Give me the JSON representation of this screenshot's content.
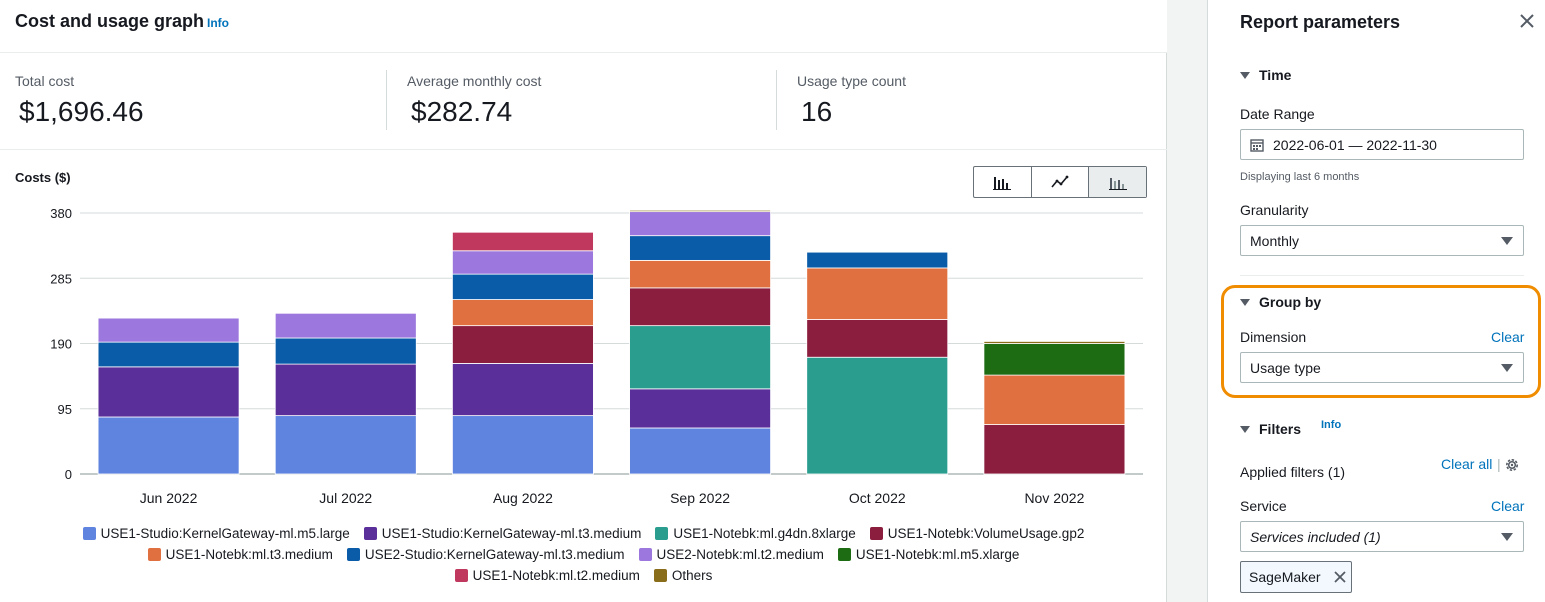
{
  "header": {
    "title": "Cost and usage graph",
    "info_label": "Info"
  },
  "stats": [
    {
      "label": "Total cost",
      "value": "$1,696.46"
    },
    {
      "label": "Average monthly cost",
      "value": "$282.74"
    },
    {
      "label": "Usage type count",
      "value": "16"
    }
  ],
  "chart_toggle": {
    "options": [
      "bar-chart-icon",
      "line-chart-icon",
      "stacked-bar-chart-icon"
    ],
    "active": "stacked-bar-chart-icon"
  },
  "chart_data": {
    "type": "bar",
    "stacked": true,
    "ylabel": "Costs ($)",
    "ylim": [
      0,
      380
    ],
    "yticks": [
      "0",
      "95",
      "190",
      "285",
      "380"
    ],
    "categories": [
      "Jun 2022",
      "Jul 2022",
      "Aug 2022",
      "Sep 2022",
      "Oct 2022",
      "Nov 2022"
    ],
    "series": [
      {
        "name": "USE1-Studio:KernelGateway-ml.m5.large",
        "color": "#5f84e0",
        "values": [
          83,
          85,
          85,
          67,
          0,
          0
        ]
      },
      {
        "name": "USE1-Studio:KernelGateway-ml.t3.medium",
        "color": "#5a2f99",
        "values": [
          73,
          75,
          76,
          57,
          0,
          0
        ]
      },
      {
        "name": "USE1-Notebk:ml.g4dn.8xlarge",
        "color": "#2a9d8f",
        "values": [
          0,
          0,
          0,
          92,
          170,
          0
        ]
      },
      {
        "name": "USE1-Notebk:VolumeUsage.gp2",
        "color": "#8b1e3f",
        "values": [
          0,
          0,
          55,
          55,
          55,
          72
        ]
      },
      {
        "name": "USE1-Notebk:ml.t3.medium",
        "color": "#e07040",
        "values": [
          0,
          0,
          38,
          40,
          75,
          72
        ]
      },
      {
        "name": "USE2-Studio:KernelGateway-ml.t3.medium",
        "color": "#0b5ca8",
        "values": [
          36,
          38,
          37,
          36,
          23,
          0
        ]
      },
      {
        "name": "USE2-Notebk:ml.t2.medium",
        "color": "#9c77dd",
        "values": [
          35,
          36,
          34,
          35,
          0,
          0
        ]
      },
      {
        "name": "USE1-Notebk:ml.m5.xlarge",
        "color": "#1d6b12",
        "values": [
          0,
          0,
          0,
          0,
          0,
          46
        ]
      },
      {
        "name": "USE1-Notebk:ml.t2.medium",
        "color": "#c0385e",
        "values": [
          0,
          0,
          27,
          0,
          0,
          0
        ]
      },
      {
        "name": "Others",
        "color": "#8a6d1a",
        "values": [
          0,
          0,
          0,
          2,
          0,
          3
        ]
      }
    ],
    "legend_position": "bottom",
    "grid": true
  },
  "legend_rows": [
    [
      0,
      1,
      2,
      3
    ],
    [
      4,
      5,
      6,
      7
    ],
    [
      8,
      9
    ]
  ],
  "side": {
    "title": "Report parameters",
    "time": {
      "header": "Time",
      "date_range_label": "Date Range",
      "date_range_value": "2022-06-01 — 2022-11-30",
      "date_hint": "Displaying last 6 months",
      "granularity_label": "Granularity",
      "granularity_value": "Monthly"
    },
    "group_by": {
      "header": "Group by",
      "dimension_label": "Dimension",
      "clear_label": "Clear",
      "dimension_value": "Usage type"
    },
    "filters": {
      "header": "Filters",
      "info_label": "Info",
      "applied_label": "Applied filters (1)",
      "clear_all_label": "Clear all",
      "service_label": "Service",
      "service_clear_label": "Clear",
      "service_value": "Services included (1)",
      "token_label": "SageMaker"
    }
  },
  "colors": {
    "accent": "#0073bb",
    "highlight": "#f08c00"
  }
}
